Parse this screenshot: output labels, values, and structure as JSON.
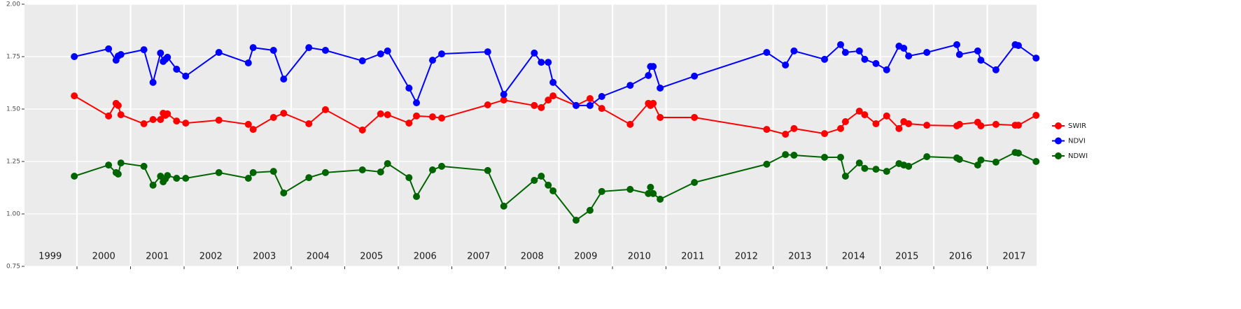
{
  "chart_data": {
    "type": "line",
    "x": [
      1999.95,
      2000.59,
      2000.73,
      2000.77,
      2000.82,
      2001.25,
      2001.42,
      2001.56,
      2001.61,
      2001.65,
      2001.69,
      2001.86,
      2002.03,
      2002.65,
      2003.2,
      2003.29,
      2003.67,
      2003.86,
      2004.33,
      2004.64,
      2005.33,
      2005.67,
      2005.8,
      2006.2,
      2006.34,
      2006.64,
      2006.81,
      2007.67,
      2007.97,
      2008.54,
      2008.67,
      2008.8,
      2008.89,
      2009.32,
      2009.58,
      2009.8,
      2010.33,
      2010.67,
      2010.71,
      2010.76,
      2010.89,
      2011.53,
      2012.88,
      2013.23,
      2013.39,
      2013.96,
      2014.26,
      2014.35,
      2014.61,
      2014.71,
      2014.92,
      2015.12,
      2015.35,
      2015.44,
      2015.53,
      2015.87,
      2016.43,
      2016.48,
      2016.82,
      2016.88,
      2017.16,
      2017.52,
      2017.58,
      2017.91
    ],
    "series": [
      {
        "name": "SWIR",
        "color": "#ff0000",
        "values": [
          1.563,
          1.467,
          1.527,
          1.517,
          1.473,
          1.43,
          1.45,
          1.45,
          1.48,
          1.47,
          1.477,
          1.443,
          1.433,
          1.447,
          1.427,
          1.403,
          1.46,
          1.48,
          1.43,
          1.497,
          1.4,
          1.477,
          1.473,
          1.433,
          1.467,
          1.463,
          1.457,
          1.52,
          1.543,
          1.517,
          1.507,
          1.543,
          1.563,
          1.517,
          1.55,
          1.503,
          1.427,
          1.527,
          1.517,
          1.527,
          1.46,
          1.46,
          1.403,
          1.38,
          1.407,
          1.383,
          1.407,
          1.44,
          1.49,
          1.473,
          1.43,
          1.467,
          1.407,
          1.44,
          1.43,
          1.423,
          1.42,
          1.427,
          1.437,
          1.42,
          1.427,
          1.423,
          1.423,
          1.47
        ]
      },
      {
        "name": "NDVI",
        "color": "#0000ff",
        "values": [
          1.75,
          1.787,
          1.733,
          1.753,
          1.76,
          1.783,
          1.627,
          1.767,
          1.727,
          1.737,
          1.747,
          1.69,
          1.657,
          1.77,
          1.72,
          1.793,
          1.78,
          1.643,
          1.793,
          1.78,
          1.73,
          1.763,
          1.777,
          1.6,
          1.53,
          1.733,
          1.763,
          1.773,
          1.57,
          1.767,
          1.723,
          1.723,
          1.627,
          1.517,
          1.517,
          1.56,
          1.613,
          1.66,
          1.703,
          1.703,
          1.6,
          1.657,
          1.77,
          1.71,
          1.777,
          1.737,
          1.807,
          1.77,
          1.777,
          1.737,
          1.717,
          1.687,
          1.8,
          1.79,
          1.753,
          1.77,
          1.807,
          1.76,
          1.777,
          1.733,
          1.687,
          1.807,
          1.803,
          1.743
        ]
      },
      {
        "name": "NDWI",
        "color": "#006400",
        "values": [
          1.18,
          1.233,
          1.197,
          1.19,
          1.243,
          1.227,
          1.137,
          1.18,
          1.153,
          1.167,
          1.183,
          1.17,
          1.17,
          1.197,
          1.17,
          1.197,
          1.203,
          1.1,
          1.173,
          1.197,
          1.21,
          1.2,
          1.24,
          1.173,
          1.083,
          1.21,
          1.227,
          1.207,
          1.037,
          1.16,
          1.18,
          1.137,
          1.11,
          0.97,
          1.017,
          1.107,
          1.117,
          1.097,
          1.127,
          1.097,
          1.07,
          1.15,
          1.237,
          1.283,
          1.28,
          1.27,
          1.27,
          1.18,
          1.243,
          1.217,
          1.213,
          1.203,
          1.24,
          1.233,
          1.227,
          1.273,
          1.267,
          1.26,
          1.233,
          1.257,
          1.247,
          1.293,
          1.29,
          1.25
        ]
      }
    ],
    "xlim": [
      1999.02,
      2017.92
    ],
    "xticks": [
      2000,
      2001,
      2002,
      2003,
      2004,
      2005,
      2006,
      2007,
      2008,
      2009,
      2010,
      2011,
      2012,
      2013,
      2014,
      2015,
      2016,
      2017
    ],
    "year_labels": [
      {
        "value": 1999.5,
        "label": "1999"
      },
      {
        "value": 2000.5,
        "label": "2000"
      },
      {
        "value": 2001.5,
        "label": "2001"
      },
      {
        "value": 2002.5,
        "label": "2002"
      },
      {
        "value": 2003.5,
        "label": "2003"
      },
      {
        "value": 2004.5,
        "label": "2004"
      },
      {
        "value": 2005.5,
        "label": "2005"
      },
      {
        "value": 2006.5,
        "label": "2006"
      },
      {
        "value": 2007.5,
        "label": "2007"
      },
      {
        "value": 2008.5,
        "label": "2008"
      },
      {
        "value": 2009.5,
        "label": "2009"
      },
      {
        "value": 2010.5,
        "label": "2010"
      },
      {
        "value": 2011.5,
        "label": "2011"
      },
      {
        "value": 2012.5,
        "label": "2012"
      },
      {
        "value": 2013.5,
        "label": "2013"
      },
      {
        "value": 2014.5,
        "label": "2014"
      },
      {
        "value": 2015.5,
        "label": "2015"
      },
      {
        "value": 2016.5,
        "label": "2016"
      },
      {
        "value": 2017.5,
        "label": "2017"
      }
    ],
    "ylim": [
      0.75,
      2.0
    ],
    "yticks": [
      0.75,
      {
        "value": 1.0,
        "label": "1.00"
      },
      1.25,
      {
        "value": 1.5,
        "label": "1.50"
      },
      1.75,
      {
        "value": 2.0,
        "label": "2.00"
      }
    ],
    "grid": true,
    "legend": "right"
  }
}
